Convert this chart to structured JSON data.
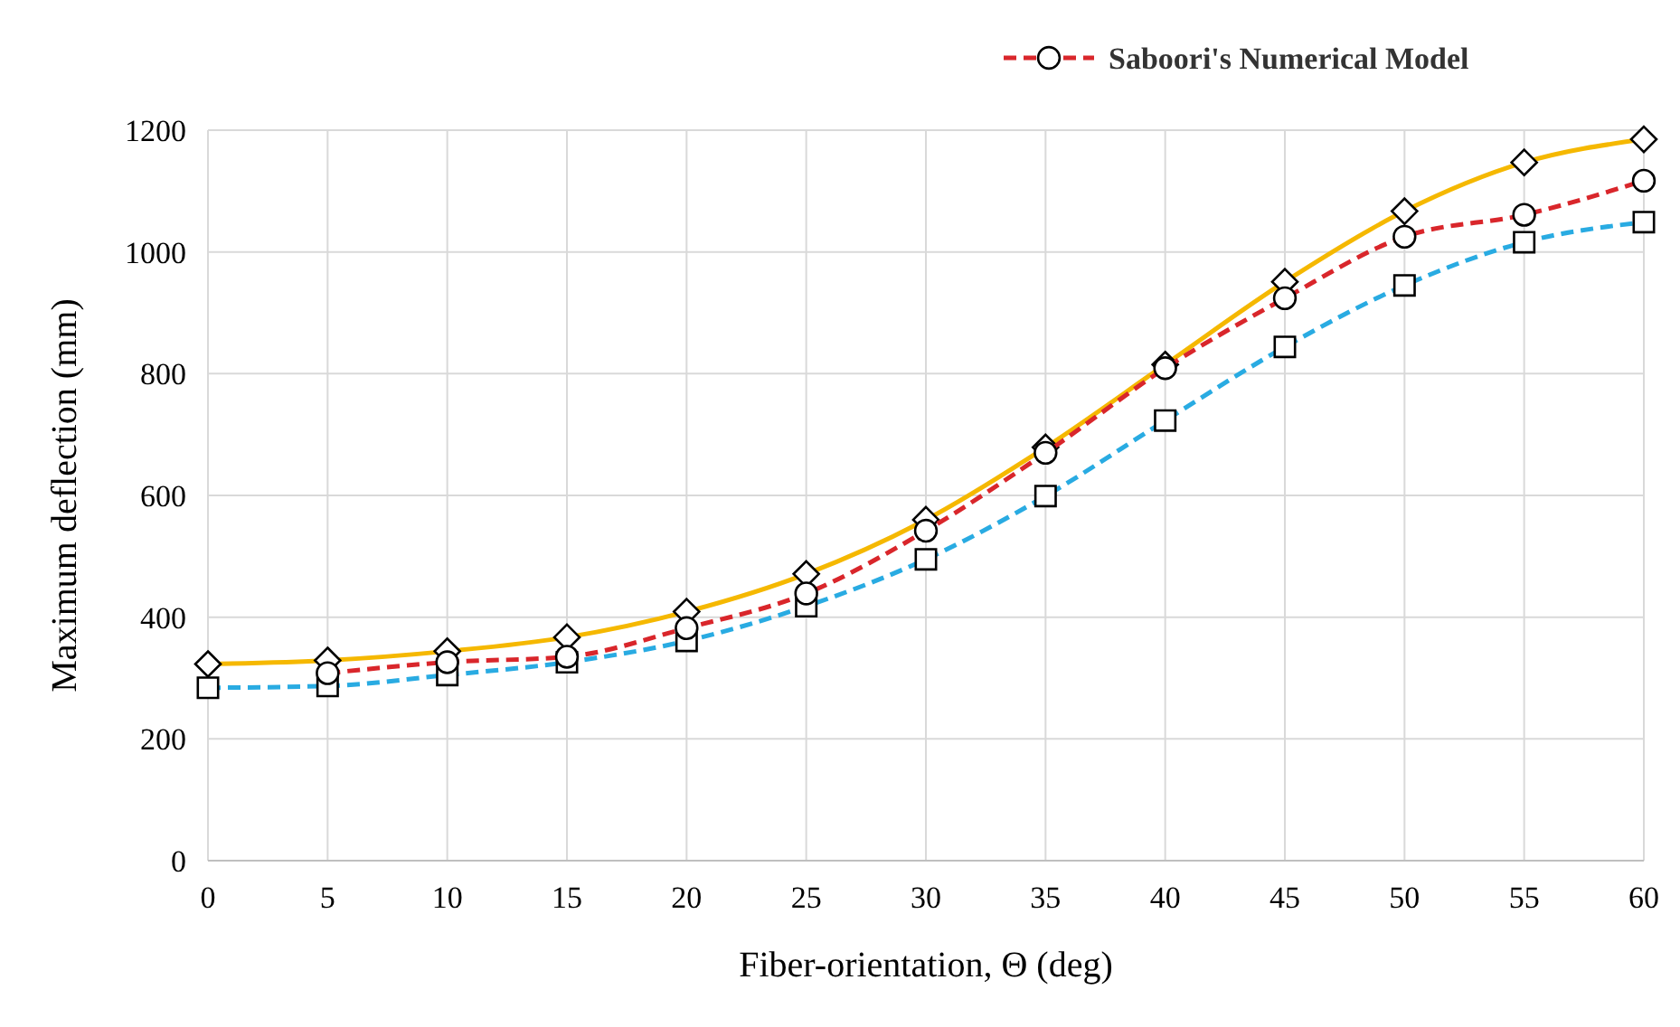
{
  "chart_data": {
    "type": "line",
    "xlabel": "Fiber-orientation, Θ (deg)",
    "ylabel": "Maximum deflection  (mm)",
    "xlim": [
      0,
      60
    ],
    "xticks": [
      0,
      5,
      10,
      15,
      20,
      25,
      30,
      35,
      40,
      45,
      50,
      55,
      60
    ],
    "ylim": [
      0,
      1200
    ],
    "yticks": [
      0,
      200,
      400,
      600,
      800,
      1000,
      1200
    ],
    "grid": true,
    "legend": "top",
    "x": [
      0,
      5,
      10,
      15,
      20,
      25,
      30,
      35,
      40,
      45,
      50,
      55,
      60
    ],
    "series": [
      {
        "color": "#f5b800",
        "marker": "diamond",
        "line_style": "solid",
        "values": [
          323,
          329,
          344,
          367,
          409,
          471,
          560,
          679,
          815,
          951,
          1067,
          1147,
          1185
        ]
      },
      {
        "color": "#29abe2",
        "marker": "square",
        "line_style": "dashed",
        "values": [
          284,
          287,
          305,
          326,
          361,
          418,
          495,
          599,
          723,
          844,
          945,
          1016,
          1049
        ]
      },
      {
        "name": "Saboori's Numerical Model",
        "color": "#d9262b",
        "marker": "circle",
        "line_style": "dashed",
        "values": [
          null,
          308,
          326,
          335,
          382,
          439,
          542,
          670,
          809,
          924,
          1025,
          1061,
          1117
        ]
      }
    ]
  }
}
